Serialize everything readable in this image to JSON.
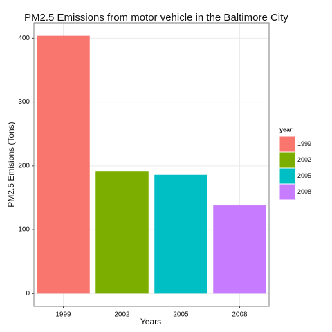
{
  "chart_data": {
    "type": "bar",
    "title": "PM2.5 Emissions from motor vehicle in the Baltimore City",
    "x_label": "Years",
    "y_label": "PM2.5 Emisions (Tons)",
    "categories": [
      "1999",
      "2002",
      "2005",
      "2008"
    ],
    "values": [
      404,
      192,
      186,
      138
    ],
    "colors": [
      "#F8766D",
      "#7CAE00",
      "#00BFC4",
      "#C77CFF"
    ],
    "legend_title": "year",
    "legend_position": "right",
    "ylim": [
      -20.2,
      424.2
    ],
    "yticks": [
      0,
      100,
      200,
      300,
      400
    ],
    "grid": true
  }
}
